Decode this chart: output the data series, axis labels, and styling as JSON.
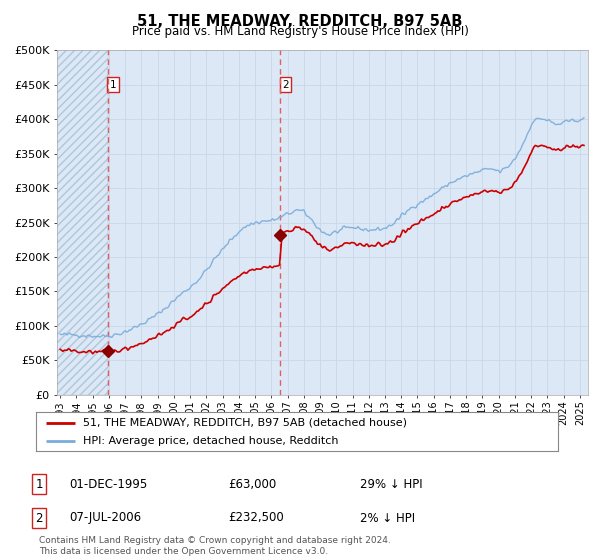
{
  "title": "51, THE MEADWAY, REDDITCH, B97 5AB",
  "subtitle": "Price paid vs. HM Land Registry's House Price Index (HPI)",
  "ylim": [
    0,
    500000
  ],
  "yticks": [
    0,
    50000,
    100000,
    150000,
    200000,
    250000,
    300000,
    350000,
    400000,
    450000,
    500000
  ],
  "ytick_labels": [
    "£0",
    "£50K",
    "£100K",
    "£150K",
    "£200K",
    "£250K",
    "£300K",
    "£350K",
    "£400K",
    "£450K",
    "£500K"
  ],
  "sale1_date": 1995.92,
  "sale1_price": 63000,
  "sale2_date": 2006.52,
  "sale2_price": 232500,
  "hpi_line_color": "#7aabdb",
  "price_line_color": "#cc0000",
  "marker_color": "#8b0000",
  "vline_color": "#e06060",
  "grid_color": "#c8d8e8",
  "bg_fill_color": "#dce8f5",
  "legend_label1": "51, THE MEADWAY, REDDITCH, B97 5AB (detached house)",
  "legend_label2": "HPI: Average price, detached house, Redditch",
  "footnote": "Contains HM Land Registry data © Crown copyright and database right 2024.\nThis data is licensed under the Open Government Licence v3.0.",
  "xmin": 1992.8,
  "xmax": 2025.5
}
